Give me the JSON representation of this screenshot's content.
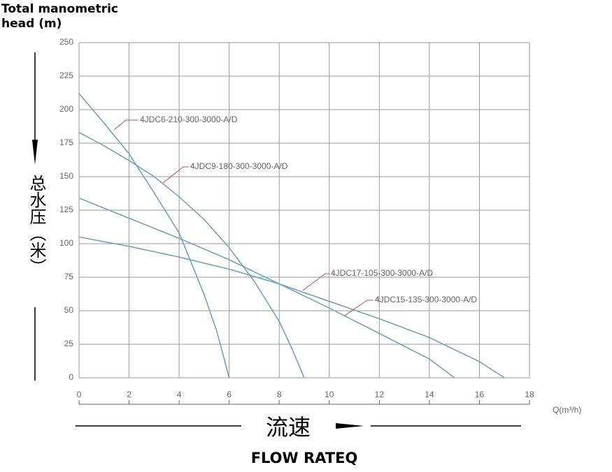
{
  "chart_data": {
    "type": "line",
    "y_label_lines": [
      "Total manometric",
      "head (m)"
    ],
    "y_label_cn": "总水压（米）",
    "x_label": "Q(m³/h)",
    "x_label_cn": "流速",
    "x_label_en": "FLOW RATEQ",
    "xlim": [
      0,
      18
    ],
    "xticks": [
      0,
      2,
      4,
      6,
      8,
      10,
      12,
      14,
      16,
      18
    ],
    "ylim": [
      0,
      250
    ],
    "yticks": [
      0,
      25,
      50,
      75,
      100,
      125,
      150,
      175,
      200,
      225,
      250
    ],
    "grid": true,
    "series": [
      {
        "name": "4JDC6-210-300-3000-A/D",
        "color": "#6fa3bf",
        "x": [
          0,
          1,
          2,
          3,
          4,
          5,
          5.5,
          6
        ],
        "values": [
          212,
          190,
          167,
          138,
          108,
          62,
          35,
          0
        ]
      },
      {
        "name": "4JDC9-180-300-3000-A/D",
        "color": "#6fa3bf",
        "x": [
          0,
          1,
          2,
          3,
          4,
          5,
          6,
          7,
          8,
          8.5,
          9
        ],
        "values": [
          183,
          173,
          162,
          150,
          135,
          118,
          97,
          72,
          42,
          22,
          0
        ]
      },
      {
        "name": "4JDC15-135-300-3000-A/D",
        "color": "#6fa3bf",
        "x": [
          0,
          2,
          4,
          6,
          8,
          10,
          12,
          14,
          15
        ],
        "values": [
          134,
          119,
          104,
          88,
          70,
          52,
          33,
          14,
          0
        ]
      },
      {
        "name": "4JDC17-105-300-3000-A/D",
        "color": "#6fa3bf",
        "x": [
          0,
          2,
          4,
          6,
          8,
          10,
          12,
          14,
          16,
          17
        ],
        "values": [
          105,
          98,
          90,
          81,
          70,
          57,
          44,
          30,
          12,
          0
        ]
      }
    ]
  }
}
